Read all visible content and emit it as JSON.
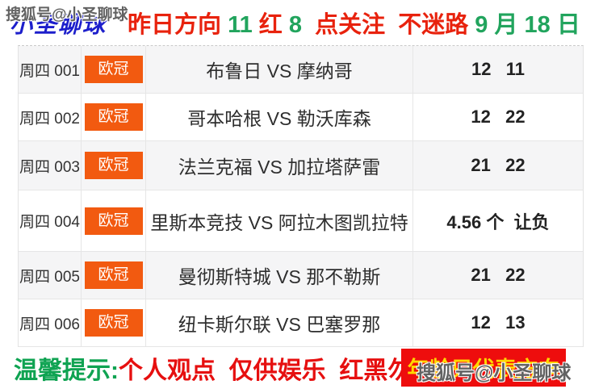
{
  "header": {
    "watermark": "搜狐号@小圣聊球",
    "brand": "小圣聊球",
    "segments": [
      {
        "text": "昨日方向 ",
        "color": "red"
      },
      {
        "text": "11 ",
        "color": "green"
      },
      {
        "text": "红 ",
        "color": "red"
      },
      {
        "text": "8",
        "color": "green"
      },
      {
        "text": "  点关注  不迷路 ",
        "color": "red"
      },
      {
        "text": "9 月 18 日",
        "color": "green"
      }
    ]
  },
  "table": {
    "rows": [
      {
        "day": "周四 001",
        "league": "欧冠",
        "match": "布鲁日 VS 摩纳哥",
        "pick": "12   11"
      },
      {
        "day": "周四 002",
        "league": "欧冠",
        "match": "哥本哈根 VS 勒沃库森",
        "pick": "12   22"
      },
      {
        "day": "周四 003",
        "league": "欧冠",
        "match": "法兰克福 VS 加拉塔萨雷",
        "pick": "21   22"
      },
      {
        "day": "周四 004",
        "league": "欧冠",
        "match": "里斯本竞技 VS 阿拉木图凯拉特",
        "pick": "4.56 个  让负"
      },
      {
        "day": "周四 005",
        "league": "欧冠",
        "match": "曼彻斯特城 VS 那不勒斯",
        "pick": "21   22"
      },
      {
        "day": "周四 006",
        "league": "欧冠",
        "match": "纽卡斯尔联 VS 巴塞罗那",
        "pick": "12   13"
      }
    ]
  },
  "footer": {
    "tip_label": "温馨提示:",
    "tip_text": "个人观点  仅供娱乐  红黑勿怪！",
    "badge": "年龄只代表方向",
    "watermark": "搜狐号@小圣聊球"
  },
  "colors": {
    "headline_red": "#e8220d",
    "headline_green": "#21a45d",
    "brand_blue": "#1c1ecb",
    "league_badge_orange": "#f25a10",
    "footer_badge_bg": "#ee0d0d",
    "footer_badge_text": "#ffd800",
    "row_alt_bg": "#f5f5f6",
    "table_border": "#e3e3e3"
  }
}
